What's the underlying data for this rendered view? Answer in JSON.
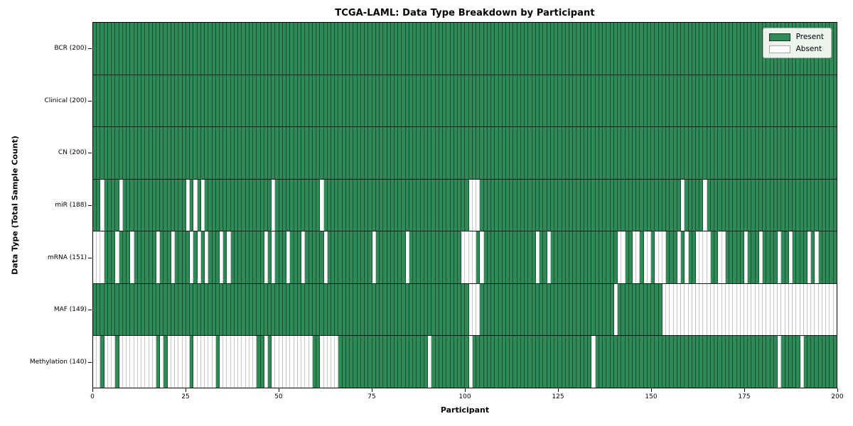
{
  "title": "TCGA-LAML: Data Type Breakdown by Participant",
  "xlabel": "Participant",
  "ylabel": "Data Type (Total Sample Count)",
  "legend": {
    "present_label": "Present",
    "absent_label": "Absent"
  },
  "colors": {
    "present": "#2e8b57",
    "absent": "#ffffff",
    "row_separator": "#141414",
    "cell_edge_present": "#1c3f2a",
    "cell_edge_absent": "#c7c7c7",
    "axes_border": "#000000",
    "background": "#ffffff"
  },
  "chart_data": {
    "type": "heatmap",
    "title": "TCGA-LAML: Data Type Breakdown by Participant",
    "xlabel": "Participant",
    "ylabel": "Data Type (Total Sample Count)",
    "legend_entries": [
      "Present",
      "Absent"
    ],
    "legend_position": "upper right",
    "x_range": [
      0,
      200
    ],
    "x_ticks": [
      0,
      25,
      50,
      75,
      100,
      125,
      150,
      175,
      200
    ],
    "n_participants": 200,
    "grid": "off",
    "rows": [
      {
        "name": "BCR",
        "label": "BCR (200)",
        "total_sample_count": 200,
        "n_present": 200,
        "n_absent": 0,
        "absent_participants": []
      },
      {
        "name": "Clinical",
        "label": "Clinical (200)",
        "total_sample_count": 200,
        "n_present": 200,
        "n_absent": 0,
        "absent_participants": []
      },
      {
        "name": "CN",
        "label": "CN (200)",
        "total_sample_count": 200,
        "n_present": 200,
        "n_absent": 0,
        "absent_participants": []
      },
      {
        "name": "miR",
        "label": "miR (188)",
        "total_sample_count": 188,
        "n_present": 188,
        "n_absent": 12,
        "absent_participants": [
          2,
          7,
          25,
          27,
          29,
          48,
          61,
          101,
          102,
          103,
          158,
          164
        ]
      },
      {
        "name": "mRNA",
        "label": "mRNA (151)",
        "total_sample_count": 151,
        "n_present": 151,
        "n_absent": 49,
        "absent_participants": [
          0,
          1,
          2,
          6,
          10,
          17,
          21,
          26,
          28,
          30,
          34,
          36,
          46,
          48,
          52,
          56,
          62,
          75,
          84,
          99,
          100,
          101,
          102,
          104,
          119,
          122,
          141,
          142,
          145,
          146,
          148,
          149,
          151,
          152,
          153,
          157,
          159,
          162,
          163,
          164,
          165,
          168,
          169,
          175,
          179,
          184,
          187,
          192,
          194
        ]
      },
      {
        "name": "MAF",
        "label": "MAF (149)",
        "total_sample_count": 149,
        "n_present": 149,
        "n_absent": 51,
        "absent_participants": [
          101,
          102,
          103,
          140,
          153,
          154,
          155,
          156,
          157,
          158,
          159,
          160,
          161,
          162,
          163,
          164,
          165,
          166,
          167,
          168,
          169,
          170,
          171,
          172,
          173,
          174,
          175,
          176,
          177,
          178,
          179,
          180,
          181,
          182,
          183,
          184,
          185,
          186,
          187,
          188,
          189,
          190,
          191,
          192,
          193,
          194,
          195,
          196,
          197,
          198,
          199
        ]
      },
      {
        "name": "Methylation",
        "label": "Methylation (140)",
        "total_sample_count": 140,
        "n_present": 140,
        "n_absent": 60,
        "absent_participants": [
          0,
          1,
          3,
          4,
          5,
          7,
          8,
          9,
          10,
          11,
          12,
          13,
          14,
          15,
          16,
          18,
          20,
          21,
          22,
          23,
          24,
          25,
          27,
          28,
          29,
          30,
          31,
          32,
          34,
          35,
          36,
          37,
          38,
          39,
          40,
          41,
          42,
          43,
          46,
          48,
          49,
          50,
          51,
          52,
          53,
          54,
          55,
          56,
          57,
          58,
          61,
          62,
          63,
          64,
          65,
          90,
          101,
          134,
          184,
          190
        ]
      }
    ]
  }
}
